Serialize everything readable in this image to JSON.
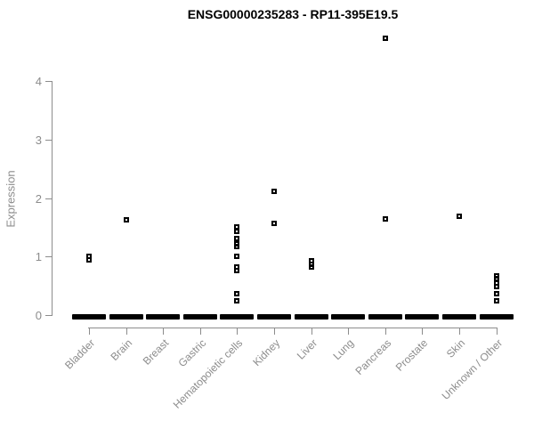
{
  "chart_data": {
    "type": "scatter",
    "subtype": "strip-plot",
    "title": "ENSG00000235283 - RP11-395E19.5",
    "xlabel": "",
    "ylabel": "Expression",
    "ylim": [
      0,
      4
    ],
    "yticks": [
      "0",
      "1",
      "2",
      "3",
      "4"
    ],
    "grid": false,
    "legend": "none",
    "marker_style": "small open black square",
    "colors": {
      "points": "#000000",
      "axis": "#8c8c8c",
      "title": "#000000",
      "background": "#ffffff"
    },
    "categories": [
      "Bladder",
      "Brain",
      "Breast",
      "Gastric",
      "Hematopoietic cells",
      "Kidney",
      "Liver",
      "Lung",
      "Pancreas",
      "Prostate",
      "Skin",
      "Unknown / Other"
    ],
    "series": [
      {
        "name": "Bladder",
        "values": [
          1.0,
          0.95
        ],
        "zero_cluster": true
      },
      {
        "name": "Brain",
        "values": [
          1.63
        ],
        "zero_cluster": true
      },
      {
        "name": "Breast",
        "values": [],
        "zero_cluster": true
      },
      {
        "name": "Gastric",
        "values": [],
        "zero_cluster": true
      },
      {
        "name": "Hematopoietic cells",
        "values": [
          1.5,
          1.43,
          1.31,
          1.21,
          1.17,
          1.01,
          0.82,
          0.76,
          0.37,
          0.24
        ],
        "zero_cluster": true
      },
      {
        "name": "Kidney",
        "values": [
          2.11,
          1.57
        ],
        "zero_cluster": true
      },
      {
        "name": "Liver",
        "values": [
          0.93,
          0.87,
          0.82
        ],
        "zero_cluster": true
      },
      {
        "name": "Lung",
        "values": [],
        "zero_cluster": true
      },
      {
        "name": "Pancreas",
        "values": [
          4.73,
          1.65
        ],
        "zero_cluster": true
      },
      {
        "name": "Prostate",
        "values": [],
        "zero_cluster": true
      },
      {
        "name": "Skin",
        "values": [
          1.69
        ],
        "zero_cluster": true
      },
      {
        "name": "Unknown / Other",
        "values": [
          0.67,
          0.62,
          0.55,
          0.49,
          0.37,
          0.25
        ],
        "zero_cluster": true
      }
    ],
    "note": "Thick black bar at y=0 in every category represents many overlapping samples with zero expression."
  }
}
